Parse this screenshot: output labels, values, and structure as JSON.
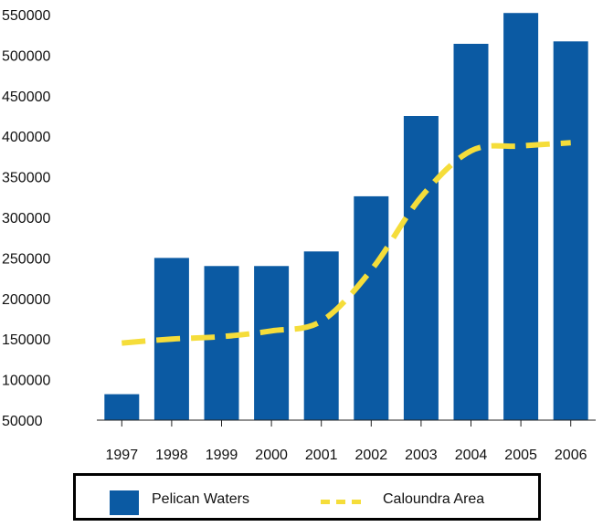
{
  "chart_data": {
    "type": "bar",
    "categories": [
      "1997",
      "1998",
      "1999",
      "2000",
      "2001",
      "2002",
      "2003",
      "2004",
      "2005",
      "2006"
    ],
    "series": [
      {
        "name": "Pelican Waters",
        "type": "bar",
        "color": "#0b5aa3",
        "values": [
          82000,
          250000,
          240000,
          240000,
          258000,
          326000,
          425000,
          514000,
          552000,
          517000
        ]
      },
      {
        "name": "Caloundra Area",
        "type": "line",
        "style": "dashed",
        "color": "#f5dd3a",
        "values": [
          145000,
          150000,
          153000,
          160000,
          172000,
          235000,
          325000,
          382000,
          388000,
          392000
        ]
      }
    ],
    "title": "",
    "xlabel": "",
    "ylabel": "",
    "ylim": [
      50000,
      550000
    ],
    "yticks": [
      "550000",
      "500000",
      "450000",
      "400000",
      "350000",
      "300000",
      "250000",
      "200000",
      "150000",
      "100000",
      "50000"
    ],
    "grid": false,
    "legend_position": "bottom"
  }
}
